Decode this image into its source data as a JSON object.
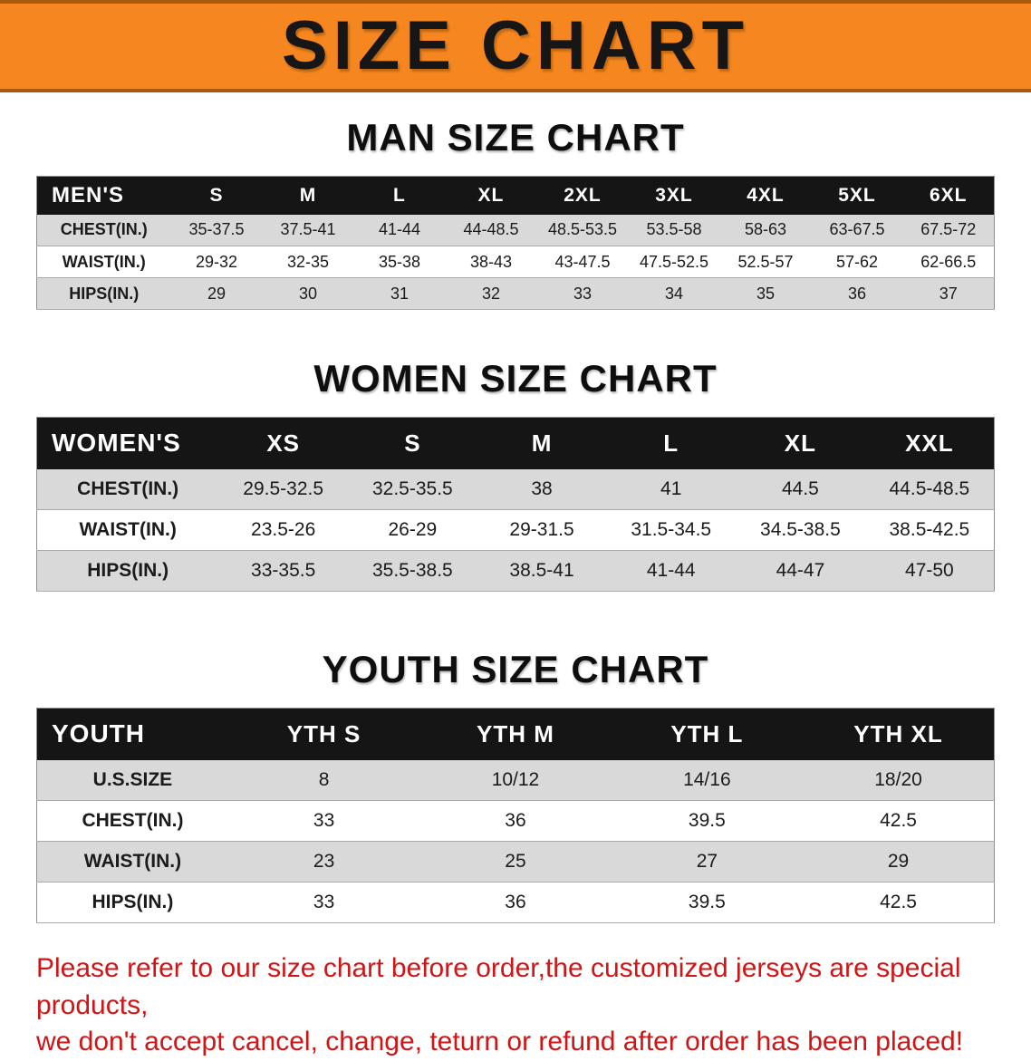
{
  "banner": {
    "title": "SIZE CHART"
  },
  "sections": [
    {
      "heading": "MAN SIZE CHART",
      "table": {
        "header": [
          "MEN'S",
          "S",
          "M",
          "L",
          "XL",
          "2XL",
          "3XL",
          "4XL",
          "5XL",
          "6XL"
        ],
        "rows": [
          [
            "CHEST(IN.)",
            "35-37.5",
            "37.5-41",
            "41-44",
            "44-48.5",
            "48.5-53.5",
            "53.5-58",
            "58-63",
            "63-67.5",
            "67.5-72"
          ],
          [
            "WAIST(IN.)",
            "29-32",
            "32-35",
            "35-38",
            "38-43",
            "43-47.5",
            "47.5-52.5",
            "52.5-57",
            "57-62",
            "62-66.5"
          ],
          [
            "HIPS(IN.)",
            "29",
            "30",
            "31",
            "32",
            "33",
            "34",
            "35",
            "36",
            "37"
          ]
        ]
      }
    },
    {
      "heading": "WOMEN SIZE CHART",
      "table": {
        "header": [
          "WOMEN'S",
          "XS",
          "S",
          "M",
          "L",
          "XL",
          "XXL"
        ],
        "rows": [
          [
            "CHEST(IN.)",
            "29.5-32.5",
            "32.5-35.5",
            "38",
            "41",
            "44.5",
            "44.5-48.5"
          ],
          [
            "WAIST(IN.)",
            "23.5-26",
            "26-29",
            "29-31.5",
            "31.5-34.5",
            "34.5-38.5",
            "38.5-42.5"
          ],
          [
            "HIPS(IN.)",
            "33-35.5",
            "35.5-38.5",
            "38.5-41",
            "41-44",
            "44-47",
            "47-50"
          ]
        ]
      }
    },
    {
      "heading": "YOUTH SIZE CHART",
      "table": {
        "header": [
          "YOUTH",
          "YTH S",
          "YTH M",
          "YTH L",
          "YTH XL"
        ],
        "rows": [
          [
            "U.S.SIZE",
            "8",
            "10/12",
            "14/16",
            "18/20"
          ],
          [
            "CHEST(IN.)",
            "33",
            "36",
            "39.5",
            "42.5"
          ],
          [
            "WAIST(IN.)",
            "23",
            "25",
            "27",
            "29"
          ],
          [
            "HIPS(IN.)",
            "33",
            "36",
            "39.5",
            "42.5"
          ]
        ]
      }
    }
  ],
  "disclaimer": {
    "line1": "Please refer to our size chart before order,the customized jerseys are special products,",
    "line2": "we don't accept cancel, change, teturn or refund after order has been placed!"
  }
}
